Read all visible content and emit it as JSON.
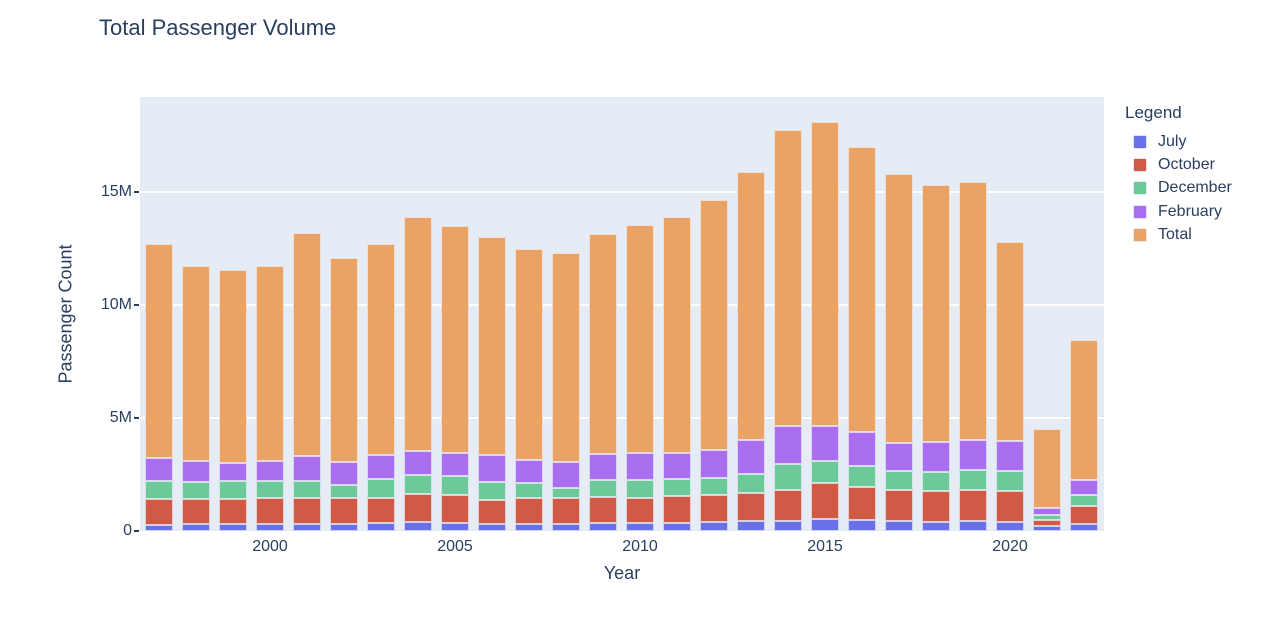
{
  "page": {
    "title": "Total Passenger Volume"
  },
  "colors": {
    "background": "#ffffff",
    "plot_background": "#E5ECF6",
    "grid": "#ffffff",
    "text": "#2a3f5f",
    "july": "#6A71E8",
    "october": "#D05A45",
    "december": "#6EC99A",
    "february": "#A96FF0",
    "total": "#EBA365"
  },
  "chart_data": {
    "type": "bar",
    "stacked": true,
    "title": "Total Passenger Volume",
    "xlabel": "Year",
    "ylabel": "Passenger Count",
    "units": "millions of passengers",
    "legend_title": "Legend",
    "legend_position": "right",
    "grid": true,
    "ylim": [
      0,
      19.2
    ],
    "categories": [
      1997,
      1998,
      1999,
      2000,
      2001,
      2002,
      2003,
      2004,
      2005,
      2006,
      2007,
      2008,
      2009,
      2010,
      2011,
      2012,
      2013,
      2014,
      2015,
      2016,
      2017,
      2018,
      2019,
      2020,
      2021,
      2022
    ],
    "series": [
      {
        "name": "July",
        "color": "#6A71E8",
        "values": [
          0.28,
          0.3,
          0.3,
          0.32,
          0.3,
          0.3,
          0.34,
          0.38,
          0.35,
          0.29,
          0.31,
          0.31,
          0.36,
          0.35,
          0.37,
          0.4,
          0.43,
          0.46,
          0.52,
          0.48,
          0.43,
          0.41,
          0.43,
          0.41,
          0.2,
          0.33
        ]
      },
      {
        "name": "October",
        "color": "#D05A45",
        "values": [
          1.12,
          1.12,
          1.12,
          1.13,
          1.18,
          1.16,
          1.14,
          1.25,
          1.24,
          1.08,
          1.17,
          1.13,
          1.14,
          1.13,
          1.17,
          1.19,
          1.26,
          1.35,
          1.6,
          1.45,
          1.37,
          1.37,
          1.38,
          1.37,
          0.3,
          0.76
        ]
      },
      {
        "name": "December",
        "color": "#6EC99A",
        "values": [
          0.81,
          0.73,
          0.78,
          0.75,
          0.75,
          0.58,
          0.82,
          0.86,
          0.83,
          0.8,
          0.65,
          0.48,
          0.77,
          0.77,
          0.77,
          0.77,
          0.85,
          1.17,
          0.97,
          0.96,
          0.84,
          0.84,
          0.88,
          0.88,
          0.22,
          0.49
        ]
      },
      {
        "name": "February",
        "color": "#A96FF0",
        "values": [
          1.03,
          0.96,
          0.81,
          0.88,
          1.08,
          1.03,
          1.07,
          1.06,
          1.02,
          1.18,
          1.03,
          1.13,
          1.14,
          1.2,
          1.14,
          1.24,
          1.47,
          1.67,
          1.57,
          1.47,
          1.25,
          1.32,
          1.32,
          1.32,
          0.31,
          0.69
        ]
      },
      {
        "name": "Total",
        "color": "#EBA365",
        "values": [
          9.44,
          8.6,
          8.56,
          8.66,
          9.89,
          9.02,
          9.31,
          10.35,
          10.07,
          9.65,
          9.31,
          9.24,
          9.75,
          10.07,
          10.44,
          11.04,
          11.89,
          13.09,
          13.42,
          12.62,
          11.91,
          11.38,
          11.45,
          8.81,
          3.49,
          6.16
        ]
      }
    ],
    "yticks": [
      {
        "value": 0,
        "label": "0"
      },
      {
        "value": 5,
        "label": "5M"
      },
      {
        "value": 10,
        "label": "10M"
      },
      {
        "value": 15,
        "label": "15M"
      }
    ],
    "xticks": [
      {
        "value": 2000,
        "label": "2000"
      },
      {
        "value": 2005,
        "label": "2005"
      },
      {
        "value": 2010,
        "label": "2010"
      },
      {
        "value": 2015,
        "label": "2015"
      },
      {
        "value": 2020,
        "label": "2020"
      }
    ]
  }
}
